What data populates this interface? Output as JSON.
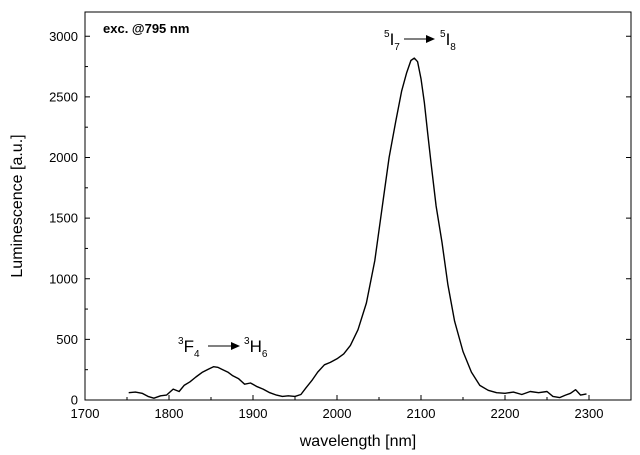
{
  "chart_data": {
    "type": "line",
    "title": "",
    "xlabel": "wavelength [nm]",
    "ylabel": "Luminescence [a.u.]",
    "xlim": [
      1700,
      2350
    ],
    "ylim": [
      0,
      3200
    ],
    "x_ticks": [
      1700,
      1800,
      1900,
      2000,
      2100,
      2200,
      2300
    ],
    "y_ticks": [
      0,
      500,
      1000,
      1500,
      2000,
      2500,
      3000
    ],
    "x_tick_labels": [
      "1700",
      "1800",
      "1900",
      "2000",
      "2100",
      "2200",
      "2300"
    ],
    "y_tick_labels": [
      "0",
      "500",
      "1000",
      "1500",
      "2000",
      "2500",
      "3000"
    ],
    "grid": false,
    "frame": "box",
    "note": "exc. @795 nm",
    "series": [
      {
        "color": "#000000",
        "x": [
          1752,
          1760,
          1768,
          1775,
          1782,
          1790,
          1797,
          1805,
          1812,
          1818,
          1825,
          1832,
          1840,
          1847,
          1853,
          1858,
          1864,
          1870,
          1876,
          1883,
          1890,
          1897,
          1905,
          1912,
          1920,
          1928,
          1935,
          1942,
          1950,
          1957,
          1963,
          1970,
          1977,
          1985,
          1992,
          2000,
          2008,
          2016,
          2025,
          2035,
          2045,
          2055,
          2062,
          2070,
          2077,
          2083,
          2088,
          2092,
          2096,
          2100,
          2104,
          2108,
          2112,
          2118,
          2125,
          2132,
          2140,
          2150,
          2160,
          2170,
          2180,
          2190,
          2200,
          2210,
          2220,
          2230,
          2240,
          2250,
          2257,
          2265,
          2272,
          2278,
          2284,
          2290,
          2297
        ],
        "y": [
          60,
          65,
          55,
          30,
          15,
          35,
          40,
          90,
          70,
          120,
          150,
          190,
          230,
          255,
          275,
          270,
          250,
          230,
          200,
          175,
          130,
          140,
          110,
          90,
          60,
          40,
          30,
          35,
          30,
          45,
          100,
          160,
          230,
          290,
          310,
          340,
          380,
          450,
          580,
          800,
          1150,
          1650,
          2000,
          2300,
          2550,
          2700,
          2800,
          2820,
          2790,
          2650,
          2450,
          2200,
          1950,
          1600,
          1300,
          950,
          650,
          400,
          230,
          120,
          80,
          60,
          55,
          65,
          45,
          70,
          60,
          70,
          30,
          20,
          40,
          55,
          85,
          40,
          50
        ]
      }
    ],
    "annotations": [
      {
        "text_pre": "3",
        "text_main": "F",
        "text_sub": "4",
        "arrow": "→",
        "text_pre2": "3",
        "text_main2": "H",
        "text_sub2": "6"
      },
      {
        "text_pre": "5",
        "text_main": "I",
        "text_sub": "7",
        "arrow": "→",
        "text_pre2": "5",
        "text_main2": "I",
        "text_sub2": "8"
      }
    ]
  }
}
